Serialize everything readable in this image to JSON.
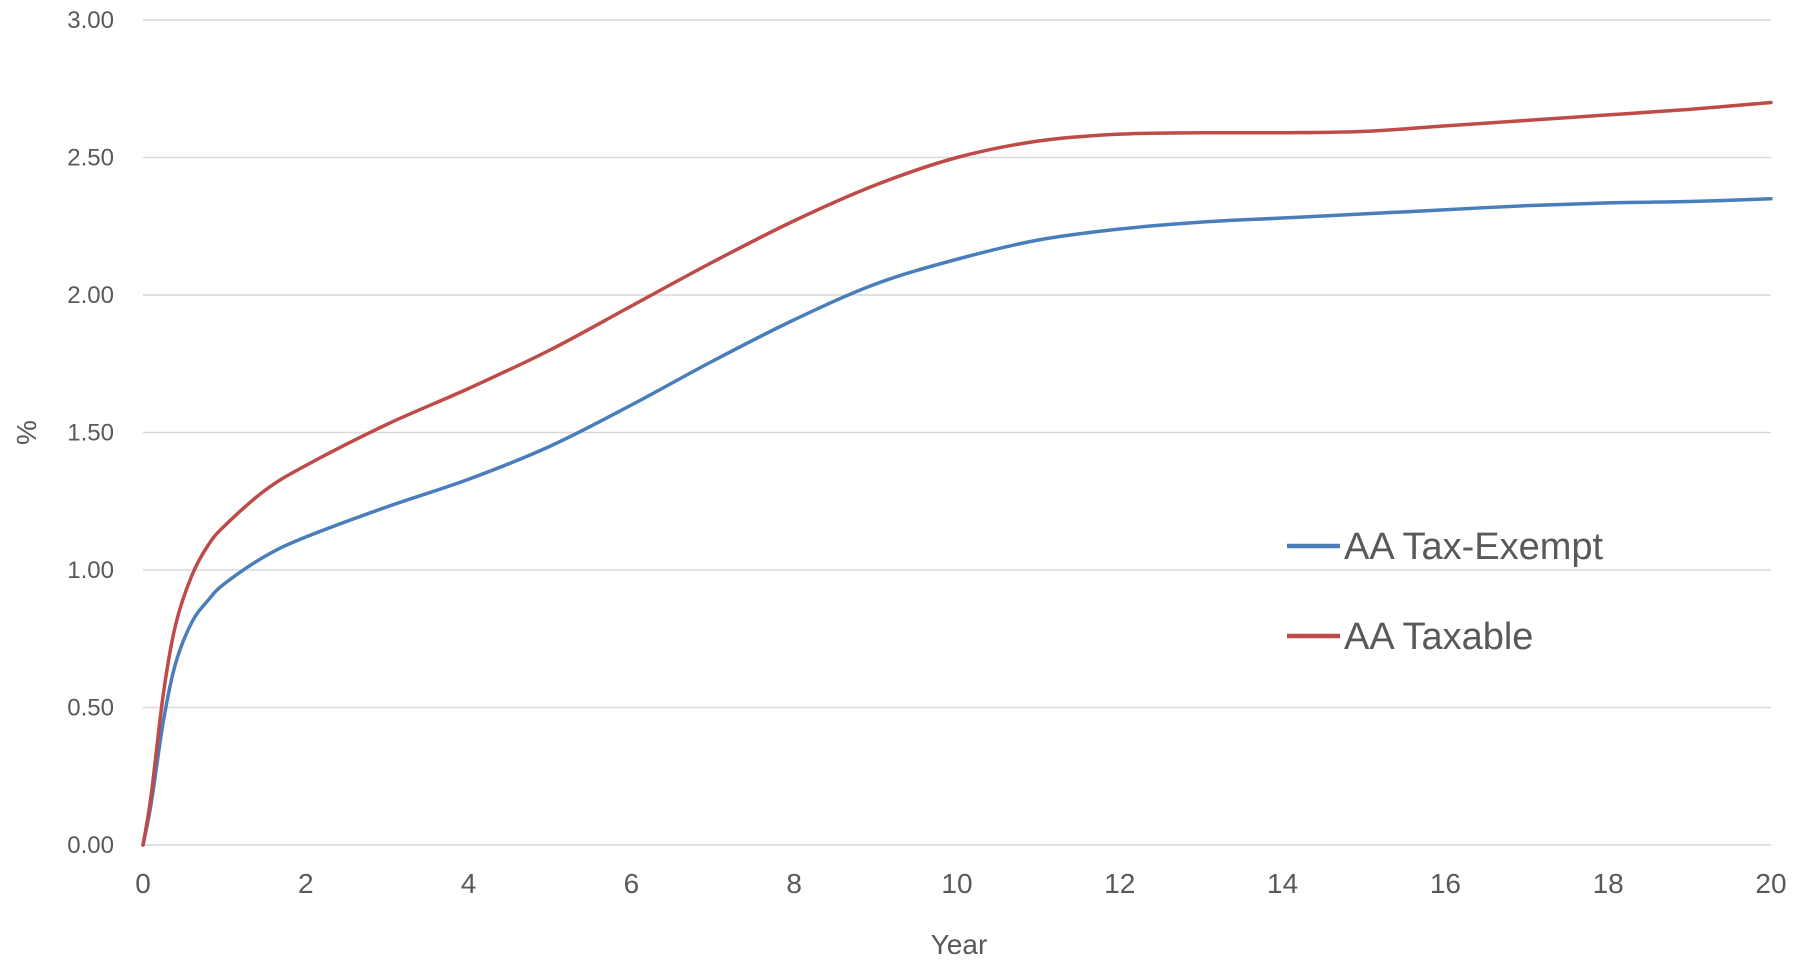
{
  "chart_data": {
    "type": "line",
    "title": "",
    "xlabel": "Year",
    "ylabel": "%",
    "xlim": [
      0,
      20
    ],
    "ylim": [
      0,
      3
    ],
    "x_ticks": [
      0,
      2,
      4,
      6,
      8,
      10,
      12,
      14,
      16,
      18,
      20
    ],
    "x_tick_labels": [
      "0",
      "2",
      "4",
      "6",
      "8",
      "10",
      "12",
      "14",
      "16",
      "18",
      "20"
    ],
    "y_ticks": [
      0,
      0.5,
      1,
      1.5,
      2,
      2.5,
      3
    ],
    "y_tick_labels": [
      "0.00",
      "0.50",
      "1.00",
      "1.50",
      "2.00",
      "2.50",
      "3.00"
    ],
    "grid": "horizontal",
    "legend_position": "right",
    "series": [
      {
        "name": "AA Tax-Exempt",
        "color": "#4a7ebb",
        "x": [
          0,
          0.1,
          0.25,
          0.4,
          0.6,
          0.8,
          1,
          1.5,
          2,
          3,
          4,
          5,
          6,
          7,
          8,
          9,
          10,
          11,
          12,
          13,
          14,
          15,
          16,
          17,
          18,
          19,
          20
        ],
        "y": [
          0,
          0.15,
          0.45,
          0.66,
          0.81,
          0.89,
          0.95,
          1.05,
          1.12,
          1.23,
          1.33,
          1.45,
          1.6,
          1.76,
          1.91,
          2.04,
          2.13,
          2.2,
          2.24,
          2.265,
          2.28,
          2.295,
          2.31,
          2.325,
          2.335,
          2.34,
          2.35
        ]
      },
      {
        "name": "AA Taxable",
        "color": "#be4b48",
        "x": [
          0,
          0.1,
          0.25,
          0.4,
          0.6,
          0.8,
          1,
          1.5,
          2,
          3,
          4,
          5,
          6,
          7,
          8,
          9,
          10,
          11,
          12,
          13,
          14,
          15,
          16,
          17,
          18,
          19,
          20
        ],
        "y": [
          0,
          0.18,
          0.55,
          0.8,
          0.98,
          1.09,
          1.16,
          1.29,
          1.38,
          1.53,
          1.66,
          1.8,
          1.96,
          2.12,
          2.27,
          2.4,
          2.5,
          2.56,
          2.585,
          2.59,
          2.59,
          2.595,
          2.615,
          2.635,
          2.655,
          2.675,
          2.7
        ]
      }
    ]
  }
}
